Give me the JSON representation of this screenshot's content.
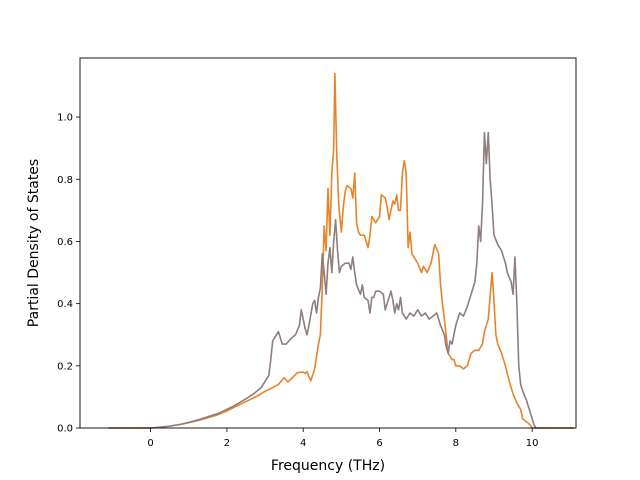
{
  "chart_data": {
    "type": "line",
    "title": "",
    "xlabel": "Frequency (THz)",
    "ylabel": "Partial Density of States",
    "xlim": [
      -1.85,
      11.15
    ],
    "ylim": [
      0.0,
      1.19
    ],
    "xticks": [
      0,
      2,
      4,
      6,
      8,
      10
    ],
    "yticks": [
      0.0,
      0.2,
      0.4,
      0.6,
      0.8,
      1.0
    ],
    "xtick_labels": [
      "0",
      "2",
      "4",
      "6",
      "8",
      "10"
    ],
    "ytick_labels": [
      "0.0",
      "0.2",
      "0.4",
      "0.6",
      "0.8",
      "1.0"
    ],
    "grid": false,
    "legend": "none",
    "series": [
      {
        "color": "#e6842a",
        "points": [
          [
            -1.1,
            0.0
          ],
          [
            0.0,
            0.0
          ],
          [
            0.2,
            0.002
          ],
          [
            0.5,
            0.006
          ],
          [
            0.8,
            0.012
          ],
          [
            1.0,
            0.017
          ],
          [
            1.3,
            0.026
          ],
          [
            1.5,
            0.033
          ],
          [
            1.8,
            0.044
          ],
          [
            2.0,
            0.055
          ],
          [
            2.2,
            0.067
          ],
          [
            2.5,
            0.085
          ],
          [
            2.8,
            0.103
          ],
          [
            3.0,
            0.118
          ],
          [
            3.2,
            0.13
          ],
          [
            3.35,
            0.14
          ],
          [
            3.5,
            0.162
          ],
          [
            3.6,
            0.148
          ],
          [
            3.7,
            0.16
          ],
          [
            3.85,
            0.178
          ],
          [
            4.0,
            0.18
          ],
          [
            4.05,
            0.175
          ],
          [
            4.1,
            0.182
          ],
          [
            4.15,
            0.165
          ],
          [
            4.2,
            0.152
          ],
          [
            4.3,
            0.19
          ],
          [
            4.4,
            0.27
          ],
          [
            4.45,
            0.3
          ],
          [
            4.5,
            0.45
          ],
          [
            4.55,
            0.65
          ],
          [
            4.6,
            0.57
          ],
          [
            4.65,
            0.77
          ],
          [
            4.7,
            0.62
          ],
          [
            4.75,
            0.82
          ],
          [
            4.8,
            0.9
          ],
          [
            4.83,
            1.14
          ],
          [
            4.88,
            0.88
          ],
          [
            4.93,
            0.72
          ],
          [
            5.0,
            0.63
          ],
          [
            5.05,
            0.71
          ],
          [
            5.1,
            0.76
          ],
          [
            5.15,
            0.78
          ],
          [
            5.25,
            0.77
          ],
          [
            5.3,
            0.74
          ],
          [
            5.35,
            0.82
          ],
          [
            5.4,
            0.66
          ],
          [
            5.45,
            0.63
          ],
          [
            5.5,
            0.62
          ],
          [
            5.6,
            0.62
          ],
          [
            5.7,
            0.58
          ],
          [
            5.75,
            0.62
          ],
          [
            5.8,
            0.68
          ],
          [
            5.9,
            0.66
          ],
          [
            6.0,
            0.68
          ],
          [
            6.05,
            0.75
          ],
          [
            6.15,
            0.74
          ],
          [
            6.2,
            0.71
          ],
          [
            6.25,
            0.67
          ],
          [
            6.3,
            0.7
          ],
          [
            6.35,
            0.73
          ],
          [
            6.4,
            0.72
          ],
          [
            6.45,
            0.75
          ],
          [
            6.5,
            0.7
          ],
          [
            6.55,
            0.7
          ],
          [
            6.6,
            0.82
          ],
          [
            6.65,
            0.86
          ],
          [
            6.7,
            0.82
          ],
          [
            6.75,
            0.58
          ],
          [
            6.8,
            0.63
          ],
          [
            6.85,
            0.56
          ],
          [
            6.9,
            0.55
          ],
          [
            7.0,
            0.53
          ],
          [
            7.1,
            0.5
          ],
          [
            7.15,
            0.52
          ],
          [
            7.25,
            0.5
          ],
          [
            7.35,
            0.53
          ],
          [
            7.45,
            0.59
          ],
          [
            7.55,
            0.56
          ],
          [
            7.6,
            0.46
          ],
          [
            7.65,
            0.4
          ],
          [
            7.7,
            0.35
          ],
          [
            7.8,
            0.24
          ],
          [
            7.9,
            0.22
          ],
          [
            7.95,
            0.22
          ],
          [
            8.0,
            0.2
          ],
          [
            8.1,
            0.2
          ],
          [
            8.2,
            0.19
          ],
          [
            8.3,
            0.2
          ],
          [
            8.4,
            0.24
          ],
          [
            8.5,
            0.25
          ],
          [
            8.6,
            0.25
          ],
          [
            8.7,
            0.27
          ],
          [
            8.75,
            0.31
          ],
          [
            8.85,
            0.35
          ],
          [
            8.95,
            0.5
          ],
          [
            9.0,
            0.41
          ],
          [
            9.05,
            0.3
          ],
          [
            9.1,
            0.27
          ],
          [
            9.2,
            0.24
          ],
          [
            9.3,
            0.2
          ],
          [
            9.4,
            0.15
          ],
          [
            9.5,
            0.11
          ],
          [
            9.6,
            0.08
          ],
          [
            9.7,
            0.06
          ],
          [
            9.75,
            0.03
          ],
          [
            9.85,
            0.02
          ],
          [
            9.95,
            0.01
          ],
          [
            10.0,
            0.0
          ],
          [
            11.1,
            0.0
          ]
        ]
      },
      {
        "color": "#8d7d7d",
        "points": [
          [
            -1.1,
            0.0
          ],
          [
            0.0,
            0.0
          ],
          [
            0.2,
            0.002
          ],
          [
            0.5,
            0.006
          ],
          [
            0.8,
            0.012
          ],
          [
            1.0,
            0.018
          ],
          [
            1.3,
            0.028
          ],
          [
            1.5,
            0.036
          ],
          [
            1.8,
            0.048
          ],
          [
            2.0,
            0.06
          ],
          [
            2.2,
            0.072
          ],
          [
            2.5,
            0.094
          ],
          [
            2.7,
            0.11
          ],
          [
            2.9,
            0.13
          ],
          [
            3.1,
            0.17
          ],
          [
            3.15,
            0.22
          ],
          [
            3.2,
            0.28
          ],
          [
            3.3,
            0.3
          ],
          [
            3.35,
            0.31
          ],
          [
            3.45,
            0.27
          ],
          [
            3.55,
            0.27
          ],
          [
            3.7,
            0.29
          ],
          [
            3.8,
            0.3
          ],
          [
            3.9,
            0.33
          ],
          [
            3.95,
            0.38
          ],
          [
            4.0,
            0.35
          ],
          [
            4.05,
            0.32
          ],
          [
            4.1,
            0.3
          ],
          [
            4.15,
            0.33
          ],
          [
            4.25,
            0.4
          ],
          [
            4.3,
            0.41
          ],
          [
            4.35,
            0.37
          ],
          [
            4.4,
            0.42
          ],
          [
            4.45,
            0.45
          ],
          [
            4.5,
            0.56
          ],
          [
            4.55,
            0.5
          ],
          [
            4.6,
            0.43
          ],
          [
            4.65,
            0.53
          ],
          [
            4.7,
            0.58
          ],
          [
            4.75,
            0.5
          ],
          [
            4.8,
            0.6
          ],
          [
            4.85,
            0.67
          ],
          [
            4.9,
            0.57
          ],
          [
            4.95,
            0.5
          ],
          [
            5.0,
            0.52
          ],
          [
            5.1,
            0.53
          ],
          [
            5.2,
            0.53
          ],
          [
            5.25,
            0.51
          ],
          [
            5.3,
            0.55
          ],
          [
            5.35,
            0.5
          ],
          [
            5.4,
            0.46
          ],
          [
            5.5,
            0.43
          ],
          [
            5.55,
            0.46
          ],
          [
            5.6,
            0.42
          ],
          [
            5.7,
            0.41
          ],
          [
            5.75,
            0.37
          ],
          [
            5.8,
            0.42
          ],
          [
            5.85,
            0.42
          ],
          [
            5.9,
            0.44
          ],
          [
            6.0,
            0.44
          ],
          [
            6.1,
            0.43
          ],
          [
            6.15,
            0.38
          ],
          [
            6.2,
            0.4
          ],
          [
            6.3,
            0.44
          ],
          [
            6.35,
            0.41
          ],
          [
            6.4,
            0.37
          ],
          [
            6.45,
            0.4
          ],
          [
            6.5,
            0.38
          ],
          [
            6.55,
            0.42
          ],
          [
            6.6,
            0.37
          ],
          [
            6.7,
            0.35
          ],
          [
            6.8,
            0.37
          ],
          [
            6.9,
            0.36
          ],
          [
            7.0,
            0.38
          ],
          [
            7.1,
            0.36
          ],
          [
            7.2,
            0.37
          ],
          [
            7.3,
            0.35
          ],
          [
            7.4,
            0.36
          ],
          [
            7.5,
            0.37
          ],
          [
            7.6,
            0.33
          ],
          [
            7.7,
            0.3
          ],
          [
            7.75,
            0.26
          ],
          [
            7.8,
            0.24
          ],
          [
            7.85,
            0.28
          ],
          [
            7.9,
            0.27
          ],
          [
            8.0,
            0.33
          ],
          [
            8.1,
            0.37
          ],
          [
            8.2,
            0.36
          ],
          [
            8.3,
            0.39
          ],
          [
            8.4,
            0.43
          ],
          [
            8.5,
            0.47
          ],
          [
            8.55,
            0.53
          ],
          [
            8.6,
            0.65
          ],
          [
            8.65,
            0.6
          ],
          [
            8.7,
            0.72
          ],
          [
            8.75,
            0.95
          ],
          [
            8.8,
            0.85
          ],
          [
            8.85,
            0.95
          ],
          [
            8.9,
            0.8
          ],
          [
            8.95,
            0.72
          ],
          [
            9.0,
            0.62
          ],
          [
            9.1,
            0.59
          ],
          [
            9.2,
            0.57
          ],
          [
            9.3,
            0.53
          ],
          [
            9.35,
            0.5
          ],
          [
            9.45,
            0.47
          ],
          [
            9.5,
            0.43
          ],
          [
            9.55,
            0.55
          ],
          [
            9.6,
            0.4
          ],
          [
            9.65,
            0.2
          ],
          [
            9.7,
            0.14
          ],
          [
            9.75,
            0.12
          ],
          [
            9.85,
            0.09
          ],
          [
            9.95,
            0.05
          ],
          [
            10.05,
            0.01
          ],
          [
            10.1,
            0.0
          ],
          [
            11.1,
            0.0
          ]
        ]
      }
    ]
  }
}
